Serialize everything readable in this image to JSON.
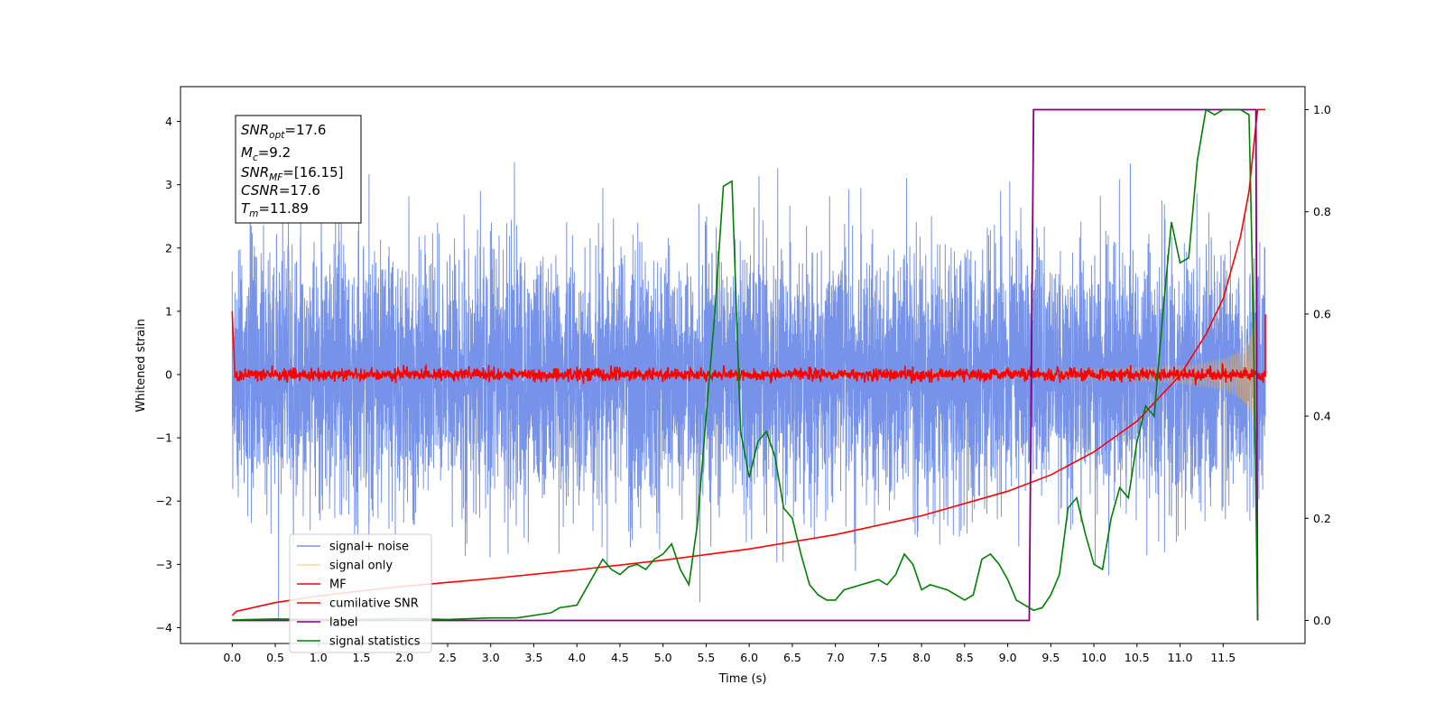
{
  "chart_data": {
    "type": "line",
    "title": "",
    "xlabel": "Time (s)",
    "ylabel": "Whitened strain",
    "xlim": [
      -0.6,
      12.45
    ],
    "ylim": [
      -4.25,
      4.55
    ],
    "y2lim": [
      -0.045,
      1.045
    ],
    "xticks": [
      "0.0",
      "0.5",
      "1.0",
      "1.5",
      "2.0",
      "2.5",
      "3.0",
      "3.5",
      "4.0",
      "4.5",
      "5.0",
      "5.5",
      "6.0",
      "6.5",
      "7.0",
      "7.5",
      "8.0",
      "8.5",
      "9.0",
      "9.5",
      "10.0",
      "10.5",
      "11.0",
      "11.5"
    ],
    "yticks": [
      "4",
      "3",
      "2",
      "1",
      "0",
      "−1",
      "−2",
      "−3",
      "−4"
    ],
    "y2ticks": [
      "1.0",
      "0.8",
      "0.6",
      "0.4",
      "0.2",
      "0.0"
    ],
    "grid": false,
    "legend_position": "lower-left",
    "annotation": {
      "lines": [
        {
          "sym": "SNR",
          "sub": "opt",
          "rest": "=17.6"
        },
        {
          "sym": "M",
          "sub": "c",
          "rest": "=9.2"
        },
        {
          "sym": "SNR",
          "sub": "MF",
          "rest": "=[16.15]"
        },
        {
          "sym": "CSNR",
          "sub": "",
          "rest": "=17.6"
        },
        {
          "sym": "T",
          "sub": "m",
          "rest": "=11.89"
        }
      ]
    },
    "series": [
      {
        "name": "signal+ noise",
        "color": "#4169e1",
        "axis": "left",
        "style": "noise",
        "t_start": 0.0,
        "t_end": 11.99,
        "sigma": 1.0
      },
      {
        "name": "signal only",
        "color": "#f5b041",
        "axis": "left",
        "style": "chirp",
        "t_start": 0.0,
        "t_end": 11.9,
        "env_peak": 1.1
      },
      {
        "name": "MF",
        "color": "#ff0000",
        "axis": "left",
        "style": "mf_noise",
        "t_start": 0.0,
        "t_end": 11.99,
        "sigma": 0.05,
        "start_value": 1.0,
        "end_value": 0.95
      },
      {
        "name": "cumilative SNR",
        "color": "#ff0000",
        "axis": "right",
        "x": [
          0.0,
          0.05,
          0.5,
          1.0,
          1.5,
          2.0,
          3.0,
          4.0,
          5.0,
          6.0,
          7.0,
          8.0,
          9.0,
          9.5,
          10.0,
          10.5,
          11.0,
          11.3,
          11.5,
          11.7,
          11.8,
          11.88,
          11.9,
          11.99
        ],
        "y": [
          0.01,
          0.018,
          0.035,
          0.048,
          0.058,
          0.067,
          0.082,
          0.099,
          0.118,
          0.14,
          0.168,
          0.205,
          0.253,
          0.285,
          0.33,
          0.39,
          0.48,
          0.56,
          0.63,
          0.75,
          0.84,
          0.97,
          1.0,
          1.0
        ]
      },
      {
        "name": "label",
        "color": "#800080",
        "axis": "right",
        "x": [
          0.0,
          9.25,
          9.3,
          11.88,
          11.9
        ],
        "y": [
          0.0,
          0.0,
          1.0,
          1.0,
          0.0
        ]
      },
      {
        "name": "signal statistics",
        "color": "#008000",
        "axis": "right",
        "x": [
          0.0,
          0.5,
          1.0,
          1.5,
          2.0,
          2.5,
          3.0,
          3.3,
          3.5,
          3.7,
          3.8,
          4.0,
          4.1,
          4.2,
          4.3,
          4.4,
          4.5,
          4.6,
          4.7,
          4.8,
          4.9,
          5.0,
          5.1,
          5.2,
          5.3,
          5.4,
          5.5,
          5.6,
          5.7,
          5.8,
          5.9,
          6.0,
          6.1,
          6.2,
          6.3,
          6.4,
          6.5,
          6.6,
          6.7,
          6.8,
          6.9,
          7.0,
          7.1,
          7.2,
          7.3,
          7.4,
          7.5,
          7.6,
          7.7,
          7.8,
          7.9,
          8.0,
          8.1,
          8.2,
          8.3,
          8.4,
          8.5,
          8.6,
          8.7,
          8.8,
          8.9,
          9.0,
          9.1,
          9.2,
          9.3,
          9.4,
          9.5,
          9.6,
          9.7,
          9.8,
          9.9,
          10.0,
          10.1,
          10.2,
          10.3,
          10.4,
          10.5,
          10.6,
          10.7,
          10.8,
          10.9,
          11.0,
          11.1,
          11.2,
          11.3,
          11.4,
          11.5,
          11.6,
          11.7,
          11.8,
          11.85,
          11.9
        ],
        "y": [
          0.001,
          0.003,
          0.002,
          0.002,
          0.004,
          0.002,
          0.005,
          0.005,
          0.01,
          0.015,
          0.025,
          0.03,
          0.06,
          0.09,
          0.12,
          0.1,
          0.09,
          0.105,
          0.11,
          0.1,
          0.12,
          0.13,
          0.15,
          0.1,
          0.07,
          0.19,
          0.4,
          0.6,
          0.85,
          0.86,
          0.37,
          0.28,
          0.35,
          0.37,
          0.32,
          0.22,
          0.2,
          0.13,
          0.07,
          0.05,
          0.04,
          0.04,
          0.06,
          0.065,
          0.07,
          0.075,
          0.08,
          0.07,
          0.09,
          0.13,
          0.11,
          0.06,
          0.07,
          0.065,
          0.06,
          0.05,
          0.04,
          0.05,
          0.12,
          0.13,
          0.11,
          0.08,
          0.04,
          0.03,
          0.02,
          0.025,
          0.05,
          0.09,
          0.22,
          0.24,
          0.17,
          0.11,
          0.1,
          0.2,
          0.26,
          0.24,
          0.35,
          0.42,
          0.4,
          0.6,
          0.78,
          0.7,
          0.71,
          0.9,
          1.0,
          0.99,
          1.0,
          1.0,
          1.0,
          0.99,
          0.6,
          0.0
        ]
      }
    ]
  }
}
